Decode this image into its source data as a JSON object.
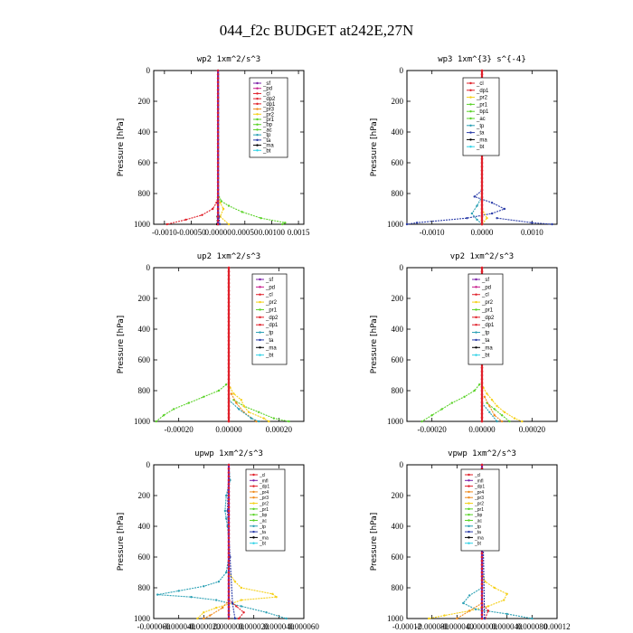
{
  "figure_title": "044_f2c  BUDGET at242E,27N",
  "colors": {
    "purple": "#7b20a8",
    "red": "#e0202a",
    "orange": "#f08c1e",
    "yellow": "#f5d018",
    "green": "#5ad228",
    "teal": "#2aa0b4",
    "blue": "#2a3ca8",
    "cyan": "#30d2e6",
    "magenta": "#c81e8c",
    "black": "#000000"
  },
  "chart_data": [
    {
      "type": "line",
      "title": "wp2   1xm^2/s^3",
      "ylabel": "Pressure [hPa]",
      "ylim": [
        1000,
        0
      ],
      "xlim": [
        -0.0012,
        0.0016
      ],
      "yticks": [
        "0",
        "200",
        "400",
        "600",
        "800",
        "1000"
      ],
      "xticks": [
        {
          "v": -0.001,
          "label": "-0.0010"
        },
        {
          "v": -0.0005,
          "label": "-0.00050"
        },
        {
          "v": 0.0,
          "label": "0.00000"
        },
        {
          "v": 0.0005,
          "label": "0.00050"
        },
        {
          "v": 0.001,
          "label": "0.00100"
        },
        {
          "v": 0.0015,
          "label": "0.0015"
        }
      ],
      "legend": [
        "_sf",
        "_pd",
        "_cl",
        "_dp2",
        "_dp1",
        "_pr3",
        "_pr2",
        "_pr1",
        "_bp",
        "_ac",
        "_tp",
        "_ta",
        "_ma",
        "_bt"
      ],
      "series": [
        {
          "name": "_pr1",
          "color": "green",
          "p": [
            800,
            850,
            880,
            920,
            960,
            990,
            1000
          ],
          "x": [
            0,
            6e-05,
            0.0002,
            0.00045,
            0.0008,
            0.00125,
            0.0012
          ]
        },
        {
          "name": "_pr2",
          "color": "yellow",
          "p": [
            820,
            860,
            900,
            950,
            1000
          ],
          "x": [
            0,
            4e-05,
            0.0001,
            4e-05,
            0.0002
          ]
        },
        {
          "name": "_dp2",
          "color": "red",
          "p": [
            820,
            860,
            900,
            940,
            970,
            1000
          ],
          "x": [
            0,
            -3e-05,
            -0.0001,
            -0.0003,
            -0.0006,
            -0.00095
          ]
        },
        {
          "name": "_ta",
          "color": "blue",
          "p": [
            900,
            950,
            1000
          ],
          "x": [
            0,
            2e-05,
            3e-05
          ]
        },
        {
          "name": "_ma",
          "color": "black",
          "p": [
            900,
            950,
            1000
          ],
          "x": [
            0,
            -1e-05,
            -2e-05
          ]
        },
        {
          "name": "_bt",
          "color": "cyan",
          "p": [
            0,
            1000
          ],
          "x": [
            0,
            0
          ]
        },
        {
          "name": "_sf",
          "color": "purple",
          "p": [
            0,
            1000
          ],
          "x": [
            0,
            0
          ]
        }
      ]
    },
    {
      "type": "line",
      "title": "wp3   1xm^{3} s^{-4}",
      "ylabel": "Pressure [hPa]",
      "ylim": [
        1000,
        0
      ],
      "xlim": [
        -0.0015,
        0.0015
      ],
      "yticks": [
        "0",
        "200",
        "400",
        "600",
        "800",
        "1000"
      ],
      "xticks": [
        {
          "v": -0.001,
          "label": "-0.0010"
        },
        {
          "v": 0.0,
          "label": "0.0000"
        },
        {
          "v": 0.001,
          "label": "0.0010"
        }
      ],
      "legend": [
        "_cl",
        "_dp1",
        "_pr2",
        "_pr1",
        "_bp1",
        "_ac",
        "_tp",
        "_ta",
        "_ma",
        "_bt"
      ],
      "series": [
        {
          "name": "_ta",
          "color": "blue",
          "p": [
            780,
            820,
            860,
            900,
            930,
            960,
            990,
            1000
          ],
          "x": [
            0,
            -0.00015,
            0.0002,
            0.00045,
            0.0002,
            -0.0003,
            -0.0013,
            -0.0015
          ]
        },
        {
          "name": "_ta2",
          "color": "blue",
          "p": [
            960,
            990,
            1000
          ],
          "x": [
            0.0003,
            0.001,
            0.0014
          ]
        },
        {
          "name": "_bp1",
          "color": "teal",
          "p": [
            820,
            880,
            930,
            970,
            1000
          ],
          "x": [
            0,
            -0.0001,
            -0.0002,
            -0.0001,
            0
          ]
        },
        {
          "name": "_pr2",
          "color": "yellow",
          "p": [
            900,
            960,
            1000
          ],
          "x": [
            0,
            0.0001,
            0
          ]
        },
        {
          "name": "_cl",
          "color": "red",
          "p": [
            0,
            1000
          ],
          "x": [
            0,
            0
          ]
        }
      ]
    },
    {
      "type": "line",
      "title": "up2   1xm^2/s^3",
      "ylabel": "Pressure [hPa]",
      "ylim": [
        1000,
        0
      ],
      "xlim": [
        -0.0003,
        0.0003
      ],
      "yticks": [
        "0",
        "200",
        "400",
        "600",
        "800",
        "1000"
      ],
      "xticks": [
        {
          "v": -0.0002,
          "label": "-0.00020"
        },
        {
          "v": 0.0,
          "label": "0.00000"
        },
        {
          "v": 0.0002,
          "label": "0.00020"
        }
      ],
      "legend": [
        "_sf",
        "_pd",
        "_cl",
        "_pr2",
        "_pr1",
        "_dp2",
        "_dp1",
        "_tp",
        "_ta",
        "_ma",
        "_bt"
      ],
      "series": [
        {
          "name": "_dp2",
          "color": "green",
          "p": [
            760,
            800,
            840,
            880,
            920,
            960,
            1000
          ],
          "x": [
            -1e-05,
            -4e-05,
            -0.0001,
            -0.00016,
            -0.00022,
            -0.00026,
            -0.00029
          ]
        },
        {
          "name": "_pr1",
          "color": "green",
          "p": [
            860,
            900,
            940,
            980,
            1000
          ],
          "x": [
            2e-05,
            6e-05,
            0.00012,
            0.00018,
            0.00024
          ]
        },
        {
          "name": "_pr2",
          "color": "yellow",
          "p": [
            780,
            820,
            860,
            900,
            940,
            980,
            1000
          ],
          "x": [
            5e-06,
            2e-05,
            5e-05,
            6e-05,
            8e-05,
            0.00014,
            0.00016
          ]
        },
        {
          "name": "_pr2b",
          "color": "orange",
          "p": [
            820,
            880,
            940,
            1000
          ],
          "x": [
            1e-05,
            3e-05,
            6e-05,
            0.00011
          ]
        },
        {
          "name": "_tp",
          "color": "teal",
          "p": [
            860,
            920,
            980,
            1000
          ],
          "x": [
            0,
            4e-05,
            9e-05,
            0.00012
          ]
        },
        {
          "name": "_cl",
          "color": "red",
          "p": [
            0,
            1000
          ],
          "x": [
            0,
            0
          ]
        }
      ]
    },
    {
      "type": "line",
      "title": "vp2   1xm^2/s^3",
      "ylabel": "Pressure [hPa]",
      "ylim": [
        1000,
        0
      ],
      "xlim": [
        -0.0003,
        0.0003
      ],
      "yticks": [
        "0",
        "200",
        "400",
        "600",
        "800",
        "1000"
      ],
      "xticks": [
        {
          "v": -0.0002,
          "label": "-0.00020"
        },
        {
          "v": 0.0,
          "label": "0.00000"
        },
        {
          "v": 0.0002,
          "label": "0.00020"
        }
      ],
      "legend": [
        "_sf",
        "_pd",
        "_cl",
        "_pr2",
        "_pr1",
        "_dp2",
        "_dp1",
        "_tp",
        "_ta",
        "_ma",
        "_bt"
      ],
      "series": [
        {
          "name": "_dp2",
          "color": "green",
          "p": [
            760,
            800,
            840,
            880,
            920,
            960,
            1000
          ],
          "x": [
            -1e-05,
            -3e-05,
            -7e-05,
            -0.00012,
            -0.00016,
            -0.0002,
            -0.00024
          ]
        },
        {
          "name": "_pr1",
          "color": "green",
          "p": [
            880,
            920,
            960,
            1000
          ],
          "x": [
            2e-05,
            5e-05,
            8e-05,
            0.00011
          ]
        },
        {
          "name": "_pr2",
          "color": "yellow",
          "p": [
            780,
            820,
            860,
            900,
            940,
            980,
            1000
          ],
          "x": [
            5e-06,
            2e-05,
            4e-05,
            6e-05,
            9e-05,
            0.00013,
            0.00016
          ]
        },
        {
          "name": "_pr2b",
          "color": "orange",
          "p": [
            840,
            900,
            960,
            1000
          ],
          "x": [
            1e-05,
            3e-05,
            5e-05,
            8e-05
          ]
        },
        {
          "name": "_tp",
          "color": "teal",
          "p": [
            880,
            940,
            1000
          ],
          "x": [
            0,
            3e-05,
            6e-05
          ]
        },
        {
          "name": "_cl",
          "color": "red",
          "p": [
            0,
            1000
          ],
          "x": [
            0,
            0
          ]
        }
      ]
    },
    {
      "type": "line",
      "title": "upwp   1xm^2/s^3",
      "ylabel": "Pressure [hPa]",
      "ylim": [
        1000,
        0
      ],
      "xlim": [
        -6e-05,
        6e-05
      ],
      "yticks": [
        "0",
        "200",
        "400",
        "600",
        "800",
        "1000"
      ],
      "xticks": [
        {
          "v": -6e-05,
          "label": "-0.000060"
        },
        {
          "v": -4e-05,
          "label": "-0.000040"
        },
        {
          "v": -2e-05,
          "label": "-0.000020"
        },
        {
          "v": 0.0,
          "label": "0.000000"
        },
        {
          "v": 2e-05,
          "label": "0.000020"
        },
        {
          "v": 4e-05,
          "label": "0.000040"
        },
        {
          "v": 6e-05,
          "label": "0.000060"
        }
      ],
      "legend": [
        "_cl",
        "_mfl",
        "_dp1",
        "_pr4",
        "_pr3",
        "_pr2",
        "_pr1",
        "_bp",
        "_ac",
        "_tp",
        "_ta",
        "_ma",
        "_bt"
      ],
      "series": [
        {
          "name": "_tp",
          "color": "teal",
          "p": [
            0,
            100,
            200,
            300,
            350,
            400,
            500,
            600,
            700,
            760,
            790,
            820,
            845,
            860,
            880,
            920,
            960,
            1000
          ],
          "x": [
            0,
            1e-06,
            -2e-06,
            -3e-06,
            -2e-06,
            -1e-06,
            0,
            0,
            -2e-06,
            -8e-06,
            -2e-05,
            -4e-05,
            -5.7e-05,
            -3e-05,
            -1e-05,
            1e-05,
            3e-05,
            4.6e-05
          ]
        },
        {
          "name": "_pr2",
          "color": "yellow",
          "p": [
            700,
            760,
            800,
            840,
            860,
            880,
            900,
            930,
            960,
            1000
          ],
          "x": [
            0,
            5e-06,
            1e-05,
            3.5e-05,
            3.8e-05,
            1e-05,
            3e-06,
            -1e-05,
            -2e-05,
            -2.5e-05
          ]
        },
        {
          "name": "_pr3",
          "color": "orange",
          "p": [
            880,
            930,
            980,
            1000
          ],
          "x": [
            0,
            -5e-06,
            -1.5e-05,
            -2e-05
          ]
        },
        {
          "name": "_dp1",
          "color": "red",
          "p": [
            880,
            920,
            960,
            1000
          ],
          "x": [
            0,
            6e-06,
            1.2e-05,
            8e-06
          ]
        },
        {
          "name": "_ta",
          "color": "blue",
          "p": [
            0,
            300,
            600,
            900,
            1000
          ],
          "x": [
            0,
            -1e-06,
            1e-06,
            3e-06,
            5e-06
          ]
        },
        {
          "name": "_mfl",
          "color": "purple",
          "p": [
            0,
            1000
          ],
          "x": [
            0,
            0
          ]
        }
      ]
    },
    {
      "type": "line",
      "title": "vpwp   1xm^2/s^3",
      "ylabel": "Pressure [hPa]",
      "ylim": [
        1000,
        0
      ],
      "xlim": [
        -0.00012,
        0.00012
      ],
      "yticks": [
        "0",
        "200",
        "400",
        "600",
        "800",
        "1000"
      ],
      "xticks": [
        {
          "v": -0.00012,
          "label": "-0.00012"
        },
        {
          "v": -8e-05,
          "label": "-0.000080"
        },
        {
          "v": -4e-05,
          "label": "-0.000040"
        },
        {
          "v": 0.0,
          "label": "0.000000"
        },
        {
          "v": 4e-05,
          "label": "0.000040"
        },
        {
          "v": 8e-05,
          "label": "0.000080"
        },
        {
          "v": 0.00012,
          "label": "0.00012"
        }
      ],
      "legend": [
        "_cl",
        "_mfl",
        "_dp1",
        "_pr4",
        "_pr3",
        "_pr2",
        "_pr1",
        "_bp",
        "_ac",
        "_tp",
        "_ta",
        "_ma",
        "_bt"
      ],
      "series": [
        {
          "name": "_pr2",
          "color": "yellow",
          "p": [
            700,
            760,
            800,
            840,
            880,
            920,
            950,
            980,
            1000
          ],
          "x": [
            0,
            5e-06,
            2e-05,
            4e-05,
            3.5e-05,
            1e-05,
            -2e-05,
            -6e-05,
            -8.5e-05
          ]
        },
        {
          "name": "_tp",
          "color": "teal",
          "p": [
            800,
            850,
            900,
            940,
            970,
            1000
          ],
          "x": [
            0,
            -2e-05,
            -3e-05,
            -1e-05,
            4e-05,
            8e-05
          ]
        },
        {
          "name": "_pr3",
          "color": "orange",
          "p": [
            900,
            950,
            1000
          ],
          "x": [
            0,
            -2e-05,
            -4e-05
          ]
        },
        {
          "name": "_dp1",
          "color": "red",
          "p": [
            900,
            950,
            1000
          ],
          "x": [
            0,
            1e-05,
            5e-06
          ]
        },
        {
          "name": "_ta",
          "color": "blue",
          "p": [
            0,
            500,
            1000
          ],
          "x": [
            0,
            2e-06,
            4e-06
          ]
        },
        {
          "name": "_mfl",
          "color": "purple",
          "p": [
            0,
            1000
          ],
          "x": [
            0,
            0
          ]
        }
      ]
    }
  ]
}
